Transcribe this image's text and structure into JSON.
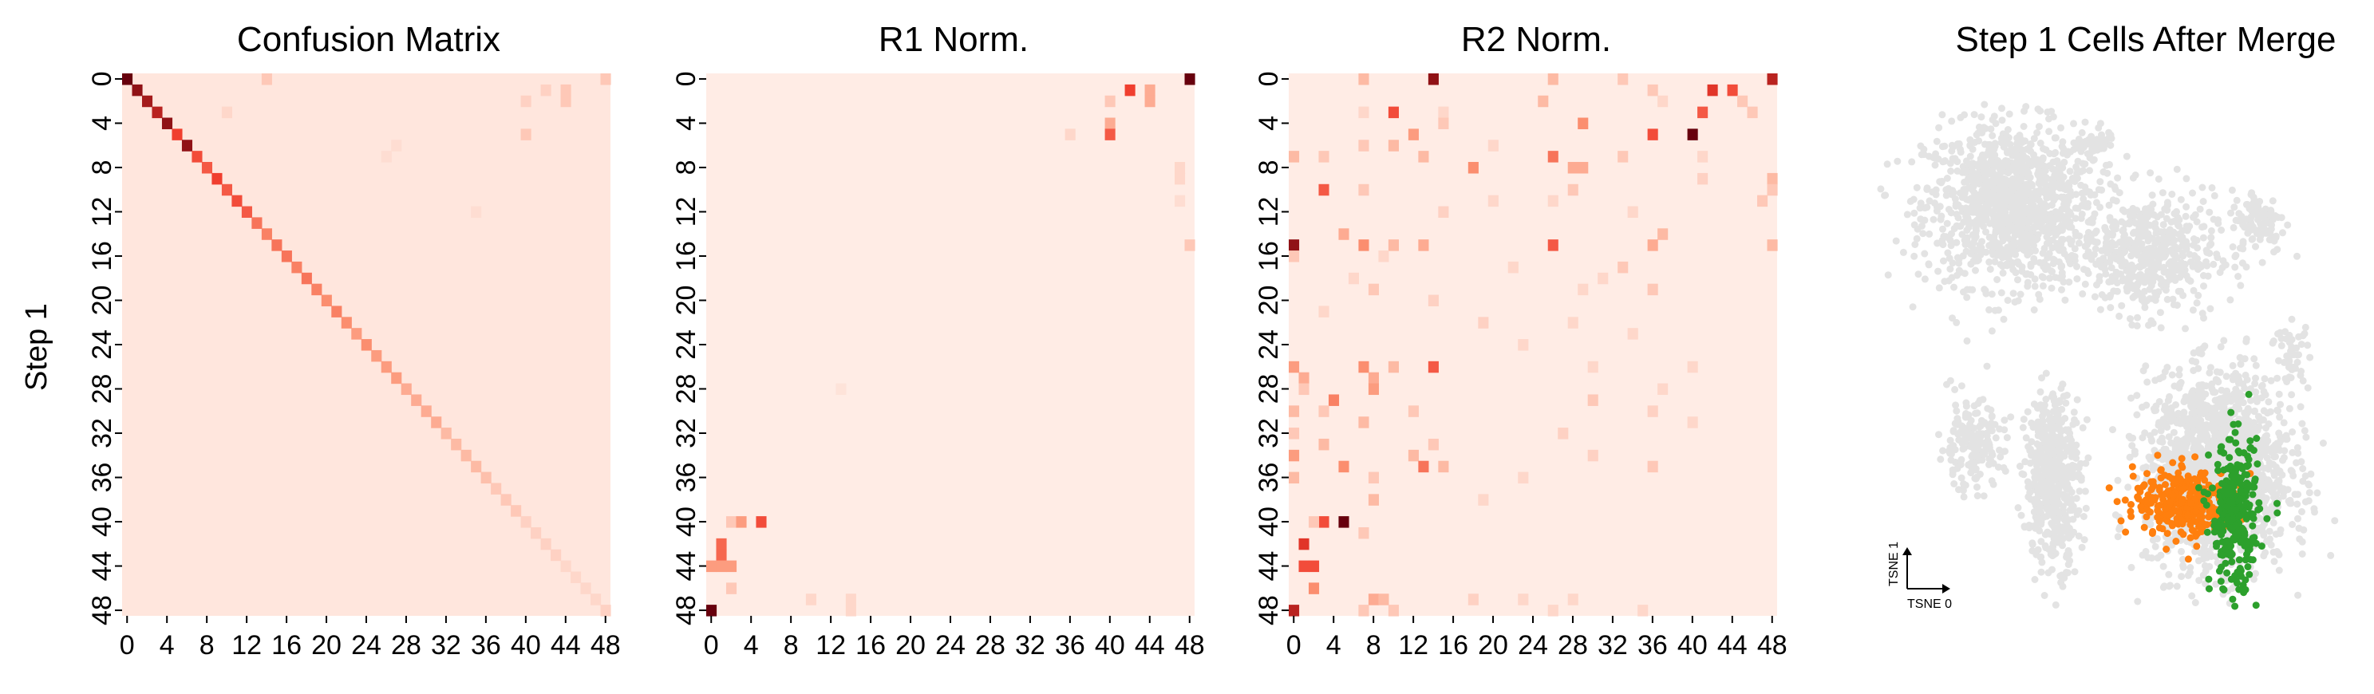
{
  "figure": {
    "ylabel": "Step 1"
  },
  "chart_data": [
    {
      "type": "heatmap",
      "title": "Confusion Matrix",
      "ylabel": "Step 1",
      "n": 49,
      "tick_labels": [
        "0",
        "4",
        "8",
        "12",
        "16",
        "20",
        "24",
        "28",
        "32",
        "36",
        "40",
        "44",
        "48"
      ],
      "colormap": [
        "#fff5f0",
        "#fc9272",
        "#ef3b2c",
        "#67000d"
      ],
      "base_value": 0.05,
      "cells": [
        [
          0,
          0,
          1.0
        ],
        [
          1,
          1,
          0.9
        ],
        [
          2,
          2,
          0.85
        ],
        [
          3,
          3,
          0.8
        ],
        [
          4,
          4,
          0.9
        ],
        [
          5,
          5,
          0.65
        ],
        [
          6,
          6,
          0.9
        ],
        [
          7,
          7,
          0.6
        ],
        [
          8,
          8,
          0.55
        ],
        [
          9,
          9,
          0.65
        ],
        [
          10,
          10,
          0.55
        ],
        [
          11,
          11,
          0.6
        ],
        [
          12,
          12,
          0.55
        ],
        [
          13,
          13,
          0.45
        ],
        [
          14,
          14,
          0.4
        ],
        [
          15,
          15,
          0.45
        ],
        [
          16,
          16,
          0.45
        ],
        [
          17,
          17,
          0.4
        ],
        [
          18,
          18,
          0.45
        ],
        [
          19,
          19,
          0.4
        ],
        [
          20,
          20,
          0.35
        ],
        [
          21,
          21,
          0.4
        ],
        [
          22,
          22,
          0.35
        ],
        [
          23,
          23,
          0.3
        ],
        [
          24,
          24,
          0.35
        ],
        [
          25,
          25,
          0.3
        ],
        [
          26,
          26,
          0.3
        ],
        [
          27,
          27,
          0.3
        ],
        [
          28,
          28,
          0.25
        ],
        [
          29,
          29,
          0.25
        ],
        [
          30,
          30,
          0.25
        ],
        [
          31,
          31,
          0.25
        ],
        [
          32,
          32,
          0.2
        ],
        [
          33,
          33,
          0.2
        ],
        [
          34,
          34,
          0.2
        ],
        [
          35,
          35,
          0.2
        ],
        [
          36,
          36,
          0.18
        ],
        [
          37,
          37,
          0.15
        ],
        [
          38,
          38,
          0.15
        ],
        [
          39,
          39,
          0.15
        ],
        [
          40,
          40,
          0.12
        ],
        [
          41,
          41,
          0.12
        ],
        [
          42,
          42,
          0.12
        ],
        [
          43,
          43,
          0.12
        ],
        [
          44,
          44,
          0.1
        ],
        [
          45,
          45,
          0.1
        ],
        [
          46,
          46,
          0.1
        ],
        [
          47,
          47,
          0.1
        ],
        [
          48,
          48,
          0.12
        ],
        [
          0,
          14,
          0.15
        ],
        [
          0,
          48,
          0.15
        ],
        [
          1,
          42,
          0.12
        ],
        [
          1,
          44,
          0.15
        ],
        [
          2,
          44,
          0.15
        ],
        [
          2,
          40,
          0.12
        ],
        [
          5,
          40,
          0.15
        ],
        [
          3,
          10,
          0.1
        ],
        [
          6,
          27,
          0.08
        ],
        [
          12,
          35,
          0.08
        ],
        [
          7,
          26,
          0.08
        ]
      ]
    },
    {
      "type": "heatmap",
      "title": "R1 Norm.",
      "n": 49,
      "tick_labels": [
        "0",
        "4",
        "8",
        "12",
        "16",
        "20",
        "24",
        "28",
        "32",
        "36",
        "40",
        "44",
        "48"
      ],
      "colormap": [
        "#fff5f0",
        "#fc9272",
        "#ef3b2c",
        "#67000d"
      ],
      "base_value": 0.03,
      "cells": [
        [
          0,
          48,
          1.0
        ],
        [
          1,
          42,
          0.65
        ],
        [
          1,
          44,
          0.25
        ],
        [
          2,
          44,
          0.25
        ],
        [
          2,
          40,
          0.15
        ],
        [
          4,
          40,
          0.25
        ],
        [
          5,
          40,
          0.55
        ],
        [
          5,
          36,
          0.1
        ],
        [
          8,
          47,
          0.1
        ],
        [
          9,
          47,
          0.1
        ],
        [
          15,
          48,
          0.15
        ],
        [
          11,
          47,
          0.08
        ],
        [
          40,
          2,
          0.15
        ],
        [
          40,
          3,
          0.3
        ],
        [
          40,
          5,
          0.6
        ],
        [
          42,
          1,
          0.5
        ],
        [
          43,
          1,
          0.5
        ],
        [
          44,
          0,
          0.3
        ],
        [
          44,
          1,
          0.3
        ],
        [
          44,
          2,
          0.3
        ],
        [
          46,
          2,
          0.15
        ],
        [
          48,
          0,
          1.0
        ],
        [
          47,
          10,
          0.1
        ],
        [
          47,
          14,
          0.1
        ],
        [
          48,
          14,
          0.1
        ],
        [
          28,
          13,
          0.06
        ]
      ]
    },
    {
      "type": "heatmap",
      "title": "R2 Norm.",
      "n": 49,
      "tick_labels": [
        "0",
        "4",
        "8",
        "12",
        "16",
        "20",
        "24",
        "28",
        "32",
        "36",
        "40",
        "44",
        "48"
      ],
      "colormap": [
        "#fff5f0",
        "#fc9272",
        "#ef3b2c",
        "#67000d"
      ],
      "base_value": 0.03,
      "cells": [
        [
          0,
          7,
          0.2
        ],
        [
          0,
          14,
          0.9
        ],
        [
          0,
          26,
          0.2
        ],
        [
          0,
          33,
          0.15
        ],
        [
          0,
          48,
          0.8
        ],
        [
          1,
          42,
          0.7
        ],
        [
          1,
          44,
          0.6
        ],
        [
          1,
          36,
          0.15
        ],
        [
          2,
          25,
          0.2
        ],
        [
          2,
          37,
          0.1
        ],
        [
          2,
          45,
          0.15
        ],
        [
          3,
          10,
          0.6
        ],
        [
          3,
          41,
          0.55
        ],
        [
          3,
          7,
          0.1
        ],
        [
          3,
          15,
          0.1
        ],
        [
          3,
          46,
          0.15
        ],
        [
          4,
          29,
          0.35
        ],
        [
          4,
          15,
          0.15
        ],
        [
          5,
          12,
          0.3
        ],
        [
          5,
          36,
          0.6
        ],
        [
          5,
          40,
          1.0
        ],
        [
          6,
          7,
          0.15
        ],
        [
          6,
          10,
          0.2
        ],
        [
          6,
          20,
          0.1
        ],
        [
          7,
          0,
          0.2
        ],
        [
          7,
          3,
          0.15
        ],
        [
          7,
          13,
          0.2
        ],
        [
          7,
          26,
          0.45
        ],
        [
          7,
          33,
          0.15
        ],
        [
          7,
          41,
          0.1
        ],
        [
          8,
          18,
          0.35
        ],
        [
          8,
          29,
          0.25
        ],
        [
          8,
          28,
          0.25
        ],
        [
          9,
          48,
          0.2
        ],
        [
          9,
          41,
          0.12
        ],
        [
          10,
          3,
          0.55
        ],
        [
          10,
          7,
          0.15
        ],
        [
          10,
          28,
          0.15
        ],
        [
          10,
          48,
          0.15
        ],
        [
          11,
          20,
          0.1
        ],
        [
          11,
          26,
          0.1
        ],
        [
          11,
          47,
          0.15
        ],
        [
          12,
          15,
          0.12
        ],
        [
          12,
          34,
          0.1
        ],
        [
          14,
          5,
          0.25
        ],
        [
          14,
          37,
          0.2
        ],
        [
          15,
          0,
          0.9
        ],
        [
          15,
          7,
          0.35
        ],
        [
          15,
          10,
          0.2
        ],
        [
          15,
          13,
          0.25
        ],
        [
          15,
          26,
          0.55
        ],
        [
          15,
          36,
          0.25
        ],
        [
          15,
          48,
          0.2
        ],
        [
          16,
          0,
          0.15
        ],
        [
          16,
          9,
          0.1
        ],
        [
          17,
          33,
          0.15
        ],
        [
          17,
          22,
          0.1
        ],
        [
          18,
          6,
          0.1
        ],
        [
          18,
          31,
          0.1
        ],
        [
          19,
          8,
          0.15
        ],
        [
          19,
          29,
          0.1
        ],
        [
          19,
          36,
          0.15
        ],
        [
          20,
          14,
          0.12
        ],
        [
          21,
          3,
          0.1
        ],
        [
          22,
          19,
          0.12
        ],
        [
          22,
          28,
          0.1
        ],
        [
          23,
          34,
          0.1
        ],
        [
          24,
          23,
          0.1
        ],
        [
          26,
          0,
          0.3
        ],
        [
          26,
          7,
          0.35
        ],
        [
          26,
          10,
          0.2
        ],
        [
          26,
          14,
          0.55
        ],
        [
          26,
          30,
          0.1
        ],
        [
          26,
          40,
          0.1
        ],
        [
          27,
          1,
          0.25
        ],
        [
          27,
          8,
          0.25
        ],
        [
          28,
          8,
          0.3
        ],
        [
          28,
          1,
          0.15
        ],
        [
          28,
          37,
          0.1
        ],
        [
          29,
          4,
          0.4
        ],
        [
          29,
          30,
          0.15
        ],
        [
          30,
          0,
          0.2
        ],
        [
          30,
          3,
          0.15
        ],
        [
          30,
          12,
          0.15
        ],
        [
          30,
          36,
          0.12
        ],
        [
          31,
          7,
          0.2
        ],
        [
          31,
          40,
          0.1
        ],
        [
          32,
          0,
          0.15
        ],
        [
          32,
          27,
          0.12
        ],
        [
          33,
          3,
          0.2
        ],
        [
          33,
          14,
          0.15
        ],
        [
          34,
          0,
          0.3
        ],
        [
          34,
          12,
          0.2
        ],
        [
          34,
          30,
          0.12
        ],
        [
          35,
          5,
          0.35
        ],
        [
          35,
          13,
          0.45
        ],
        [
          35,
          36,
          0.15
        ],
        [
          35,
          15,
          0.2
        ],
        [
          36,
          0,
          0.2
        ],
        [
          36,
          8,
          0.15
        ],
        [
          36,
          23,
          0.1
        ],
        [
          38,
          8,
          0.2
        ],
        [
          38,
          19,
          0.1
        ],
        [
          40,
          3,
          0.6
        ],
        [
          40,
          5,
          1.0
        ],
        [
          40,
          2,
          0.15
        ],
        [
          41,
          7,
          0.15
        ],
        [
          42,
          1,
          0.7
        ],
        [
          44,
          1,
          0.6
        ],
        [
          44,
          2,
          0.6
        ],
        [
          46,
          2,
          0.35
        ],
        [
          47,
          8,
          0.25
        ],
        [
          47,
          9,
          0.2
        ],
        [
          47,
          18,
          0.12
        ],
        [
          47,
          23,
          0.1
        ],
        [
          47,
          28,
          0.1
        ],
        [
          48,
          0,
          0.8
        ],
        [
          48,
          7,
          0.15
        ],
        [
          48,
          10,
          0.15
        ],
        [
          48,
          26,
          0.1
        ],
        [
          48,
          35,
          0.1
        ]
      ]
    },
    {
      "type": "scatter",
      "title": "Step 1 Cells After Merge",
      "xlabel": "TSNE 0",
      "ylabel": "TSNE 1",
      "grid": false,
      "legend": "none",
      "background_color": "#e3e3e3",
      "series_colors": [
        "#ff7f0e",
        "#2ca02c"
      ],
      "series": [
        {
          "color": "#ff7f0e",
          "center": [
            31,
            -49
          ],
          "spread": [
            7.5,
            5
          ],
          "count": 320
        },
        {
          "color": "#2ca02c",
          "center": [
            45,
            -53
          ],
          "spread": [
            3.5,
            11
          ],
          "count": 300
        }
      ],
      "background_clusters": [
        {
          "center": [
            -20,
            40
          ],
          "spread": [
            16,
            15
          ],
          "count": 1200
        },
        {
          "center": [
            20,
            25
          ],
          "spread": [
            12,
            11
          ],
          "count": 500
        },
        {
          "center": [
            52,
            35
          ],
          "spread": [
            5,
            6
          ],
          "count": 110
        },
        {
          "center": [
            40,
            -40
          ],
          "spread": [
            13,
            18
          ],
          "count": 1700
        },
        {
          "center": [
            -8,
            -42
          ],
          "spread": [
            5,
            16
          ],
          "count": 500
        },
        {
          "center": [
            -32,
            -32
          ],
          "spread": [
            6,
            8
          ],
          "count": 180
        },
        {
          "center": [
            5,
            58
          ],
          "spread": [
            3,
            3
          ],
          "count": 40
        },
        {
          "center": [
            62,
            -5
          ],
          "spread": [
            3,
            6
          ],
          "count": 50
        }
      ]
    }
  ]
}
